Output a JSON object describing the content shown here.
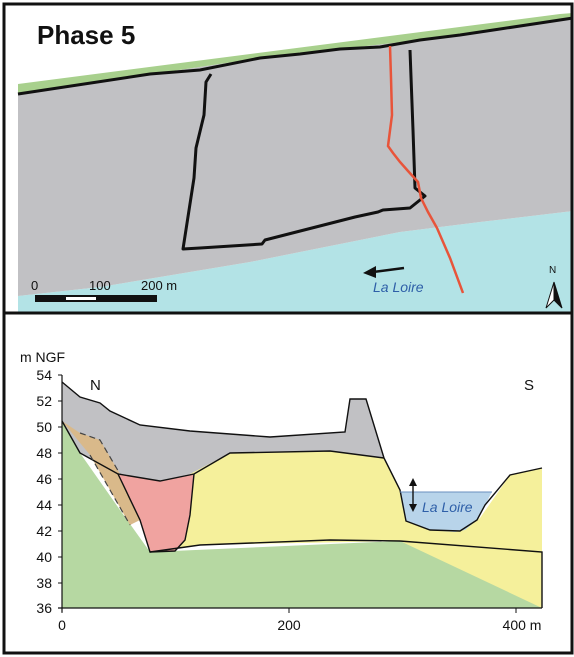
{
  "title": "Phase 5",
  "plan": {
    "river_label": "La Loire",
    "scale_labels": [
      "0",
      "100",
      "200 m"
    ],
    "north_label": "N"
  },
  "section": {
    "y_unit": "m NGF",
    "y_ticks": [
      "54",
      "52",
      "50",
      "48",
      "46",
      "44",
      "42",
      "40",
      "38",
      "36"
    ],
    "x_ticks": [
      "0",
      "200",
      "400 m"
    ],
    "left_label": "N",
    "right_label": "S",
    "river_label": "La Loire"
  },
  "colors": {
    "frame": "#111111",
    "plan_gray": "#c1c1c4",
    "water": "#b3e3e6",
    "grass": "#a8d08d",
    "green_fill": "#b6d8a2",
    "tan_fill": "#d9b98a",
    "pink_fill": "#f0a3a0",
    "yellow_fill": "#f5f09b",
    "river_blue": "#b8d4ea",
    "fault_red": "#e8543a"
  }
}
